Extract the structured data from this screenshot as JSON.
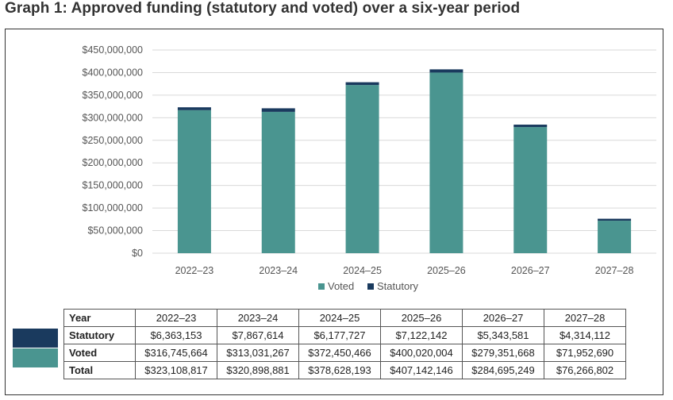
{
  "title": "Graph 1: Approved funding (statutory and voted) over a six-year period",
  "colors": {
    "voted": "#4a9590",
    "statutory": "#1a3a5e",
    "grid": "#d9d9d9"
  },
  "chart_data": {
    "type": "bar",
    "stacked": true,
    "categories": [
      "2022–23",
      "2023–24",
      "2024–25",
      "2025–26",
      "2026–27",
      "2027–28"
    ],
    "series": [
      {
        "name": "Voted",
        "values": [
          316745664,
          313031267,
          372450466,
          400020004,
          279351668,
          71952690
        ]
      },
      {
        "name": "Statutory",
        "values": [
          6363153,
          7867614,
          6177727,
          7122142,
          5343581,
          4314112
        ]
      }
    ],
    "ylim": [
      0,
      450000000
    ],
    "yticks": [
      "$0",
      "$50,000,000",
      "$100,000,000",
      "$150,000,000",
      "$200,000,000",
      "$250,000,000",
      "$300,000,000",
      "$350,000,000",
      "$400,000,000",
      "$450,000,000"
    ],
    "ytick_values": [
      0,
      50000000,
      100000000,
      150000000,
      200000000,
      250000000,
      300000000,
      350000000,
      400000000,
      450000000
    ],
    "grid": true,
    "legend": "bottom"
  },
  "table": {
    "header": [
      "Year",
      "2022–23",
      "2023–24",
      "2024–25",
      "2025–26",
      "2026–27",
      "2027–28"
    ],
    "rows": [
      {
        "label": "Statutory",
        "cells": [
          "$6,363,153",
          "$7,867,614",
          "$6,177,727",
          "$7,122,142",
          "$5,343,581",
          "$4,314,112"
        ]
      },
      {
        "label": "Voted",
        "cells": [
          "$316,745,664",
          "$313,031,267",
          "$372,450,466",
          "$400,020,004",
          "$279,351,668",
          "$71,952,690"
        ]
      },
      {
        "label": "Total",
        "cells": [
          "$323,108,817",
          "$320,898,881",
          "$378,628,193",
          "$407,142,146",
          "$284,695,249",
          "$76,266,802"
        ]
      }
    ]
  }
}
